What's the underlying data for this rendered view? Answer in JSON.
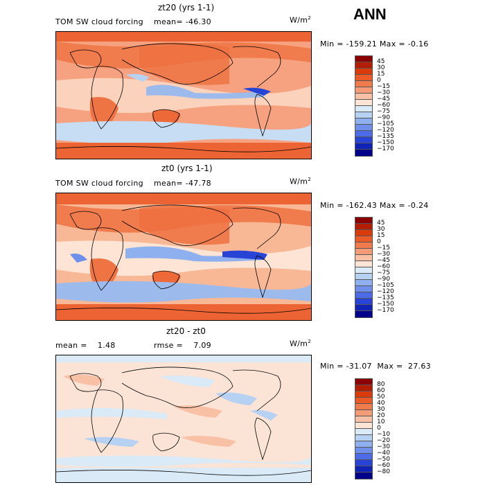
{
  "season": "ANN",
  "panels": [
    {
      "title": "zt20 (yrs 1-1)",
      "left_text": "TOM SW cloud forcing",
      "mean_text": "mean= -46.30",
      "units_base": "W/m",
      "units_exp": "2",
      "minmax_text": "Min = -159.21  Max =  -0.16",
      "colorbar": {
        "labels": [
          "45",
          "30",
          "15",
          "0",
          "−15",
          "−30",
          "−45",
          "−60",
          "−75",
          "−90",
          "−105",
          "−120",
          "−135",
          "−150",
          "−170"
        ],
        "colors": [
          "#8b0000",
          "#b41e00",
          "#d93b0a",
          "#ec5a28",
          "#f07b4c",
          "#f49b77",
          "#f8c1a6",
          "#fde4d4",
          "#dbeaf7",
          "#b7d1f2",
          "#8fb0ee",
          "#6e90eb",
          "#4b6ce6",
          "#2844d6",
          "#0f24b4",
          "#00008b"
        ]
      }
    },
    {
      "title": "zt0 (yrs 1-1)",
      "left_text": "TOM SW cloud forcing",
      "mean_text": "mean= -47.78",
      "units_base": "W/m",
      "units_exp": "2",
      "minmax_text": "Min = -162.43  Max =  -0.24",
      "colorbar": {
        "labels": [
          "45",
          "30",
          "15",
          "0",
          "−15",
          "−30",
          "−45",
          "−60",
          "−75",
          "−90",
          "−105",
          "−120",
          "−135",
          "−150",
          "−170"
        ],
        "colors": [
          "#8b0000",
          "#b41e00",
          "#d93b0a",
          "#ec5a28",
          "#f07b4c",
          "#f49b77",
          "#f8c1a6",
          "#fde4d4",
          "#dbeaf7",
          "#b7d1f2",
          "#8fb0ee",
          "#6e90eb",
          "#4b6ce6",
          "#2844d6",
          "#0f24b4",
          "#00008b"
        ]
      }
    },
    {
      "title": "zt20 - zt0",
      "left_text": "mean =    1.48",
      "mean_text": "rmse =    7.09",
      "units_base": "W/m",
      "units_exp": "2",
      "minmax_text": "Min = -31.07  Max =  27.63",
      "colorbar": {
        "labels": [
          "80",
          "60",
          "50",
          "40",
          "30",
          "20",
          "10",
          "0",
          "−10",
          "−20",
          "−30",
          "−40",
          "−50",
          "−60",
          "−80"
        ],
        "colors": [
          "#8b0000",
          "#b41e00",
          "#d93b0a",
          "#ec5a28",
          "#f07b4c",
          "#f49b77",
          "#f8c1a6",
          "#fde4d4",
          "#dbeaf7",
          "#b7d1f2",
          "#8fb0ee",
          "#6e90eb",
          "#4b6ce6",
          "#2844d6",
          "#0f24b4",
          "#00008b"
        ]
      }
    }
  ]
}
